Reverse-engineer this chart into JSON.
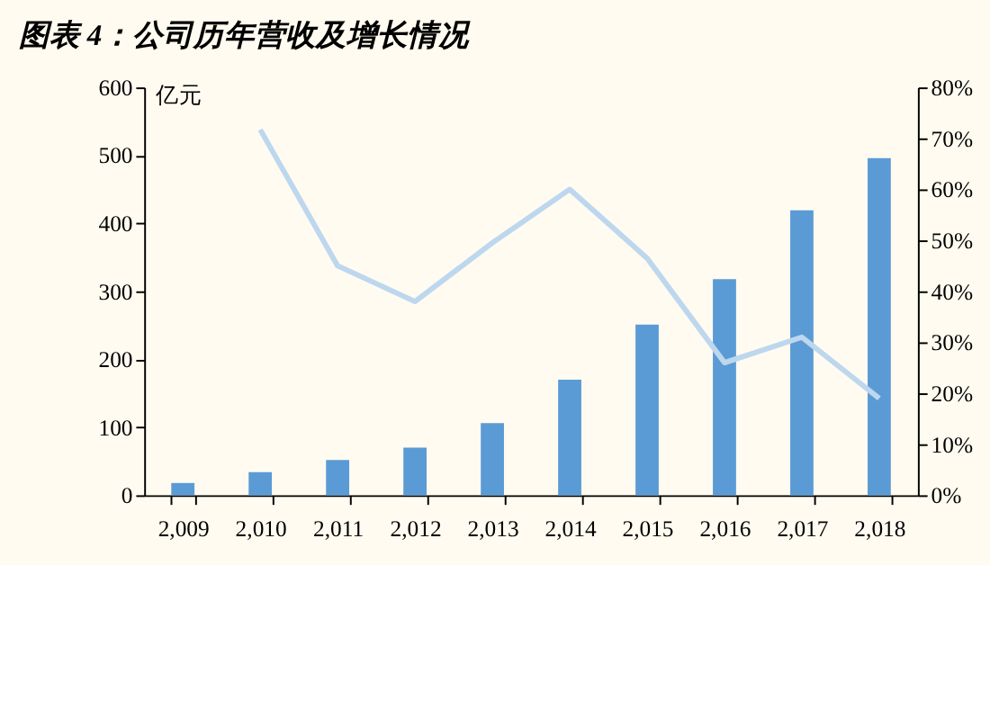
{
  "chart_data": {
    "type": "bar",
    "title": "图表 4：公司历年营收及增长情况",
    "ylabel": "亿元",
    "categories": [
      "2,009",
      "2,010",
      "2,011",
      "2,012",
      "2,013",
      "2,014",
      "2,015",
      "2,016",
      "2,017",
      "2,018"
    ],
    "series": [
      {
        "color": "#5b9bd5",
        "values": [
          18,
          34,
          52,
          70,
          106,
          170,
          251,
          318,
          419,
          496
        ]
      },
      {
        "type": "line",
        "axis": "y2",
        "color": "#bdd7ee",
        "values": [
          null,
          71.7,
          45,
          38,
          49.5,
          60,
          46.5,
          26,
          31,
          19
        ]
      }
    ],
    "ylim": [
      0,
      600
    ],
    "yticks": [
      0,
      100,
      200,
      300,
      400,
      500,
      600
    ],
    "y2lim": [
      0,
      80
    ],
    "y2ticks": [
      {
        "value": 0,
        "label": "0%"
      },
      {
        "value": 10,
        "label": "10%"
      },
      {
        "value": 20,
        "label": "20%"
      },
      {
        "value": 30,
        "label": "30%"
      },
      {
        "value": 40,
        "label": "40%"
      },
      {
        "value": 50,
        "label": "50%"
      },
      {
        "value": 60,
        "label": "60%"
      },
      {
        "value": 70,
        "label": "70%"
      },
      {
        "value": 80,
        "label": "80%"
      }
    ],
    "grid": false
  }
}
